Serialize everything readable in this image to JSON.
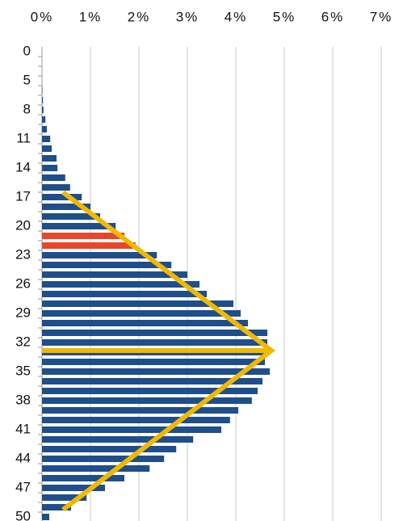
{
  "chart_data": {
    "type": "barh",
    "categories": [
      "0",
      null,
      null,
      "5",
      null,
      null,
      "8",
      null,
      null,
      "11",
      null,
      null,
      "14",
      null,
      null,
      "17",
      null,
      null,
      "20",
      null,
      null,
      "23",
      null,
      null,
      "26",
      null,
      null,
      "29",
      null,
      null,
      "32",
      null,
      null,
      "35",
      null,
      null,
      "38",
      null,
      null,
      "41",
      null,
      null,
      "44",
      null,
      null,
      "47",
      null,
      null,
      "50"
    ],
    "values": [
      0,
      0,
      0,
      0,
      0.01,
      0.02,
      0.03,
      0.07,
      0.1,
      0.17,
      0.2,
      0.3,
      0.32,
      0.48,
      0.58,
      0.82,
      1.0,
      1.2,
      1.52,
      1.7,
      1.93,
      2.37,
      2.67,
      3.0,
      3.25,
      3.4,
      3.95,
      4.1,
      4.25,
      4.65,
      4.65,
      4.65,
      4.6,
      4.7,
      4.55,
      4.45,
      4.33,
      4.05,
      3.88,
      3.7,
      3.12,
      2.77,
      2.52,
      2.22,
      1.7,
      1.3,
      0.92,
      0.6,
      0.15
    ],
    "color": "#1f4e8c",
    "highlight": {
      "indices": [
        19,
        20
      ],
      "color": "#e8462a"
    },
    "xlim": [
      0,
      7
    ],
    "xticks": [
      {
        "value": 0,
        "label": "0%"
      },
      {
        "value": 1,
        "label": "1%"
      },
      {
        "value": 2,
        "label": "2%"
      },
      {
        "value": 3,
        "label": "3%"
      },
      {
        "value": 4,
        "label": "4%"
      },
      {
        "value": 5,
        "label": "5%"
      },
      {
        "value": 6,
        "label": "6%"
      },
      {
        "value": 7,
        "label": "7%"
      }
    ],
    "grid": true
  }
}
